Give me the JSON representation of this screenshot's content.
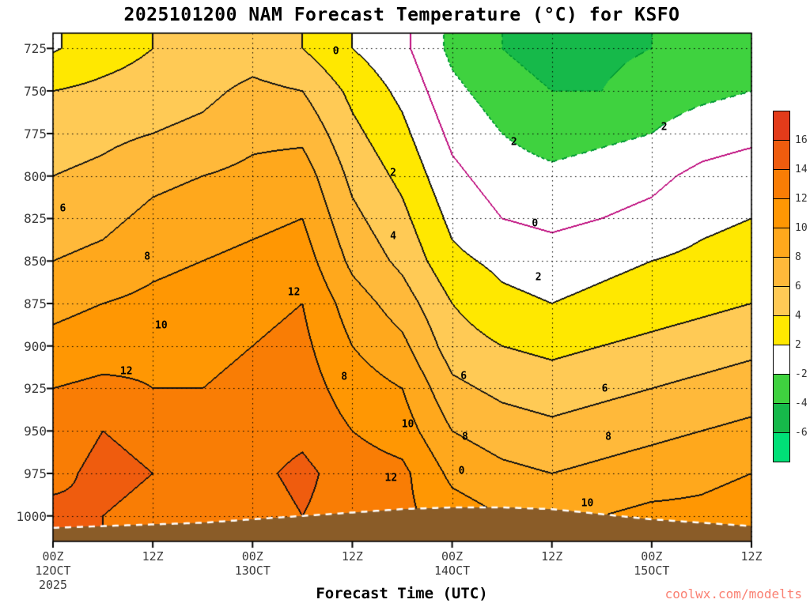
{
  "title": "2025101200 NAM Forecast Temperature (°C) for KSFO",
  "x_axis_title": "Forecast Time (UTC)",
  "watermark": "coolwx.com/modelts",
  "chart_data": {
    "type": "heatmap",
    "subtype": "time-height contour cross-section",
    "title": "2025101200 NAM Forecast Temperature (°C) for KSFO",
    "unit": "°C",
    "contour_interval": 2,
    "x_hours": [
      0,
      6,
      12,
      18,
      24,
      30,
      36,
      42,
      48,
      54,
      60,
      66,
      72,
      78,
      84
    ],
    "x_tick_hours": [
      0,
      12,
      24,
      36,
      48,
      60,
      72,
      84
    ],
    "x_tick_labels": [
      "00Z",
      "12Z",
      "00Z",
      "12Z",
      "00Z",
      "12Z",
      "00Z",
      "12Z"
    ],
    "date_ticks": [
      {
        "hour": 0,
        "label": "12OCT",
        "sublabel": "2025"
      },
      {
        "hour": 24,
        "label": "13OCT",
        "sublabel": ""
      },
      {
        "hour": 48,
        "label": "14OCT",
        "sublabel": ""
      },
      {
        "hour": 72,
        "label": "15OCT",
        "sublabel": ""
      }
    ],
    "pressure_levels": [
      725,
      750,
      775,
      800,
      825,
      850,
      875,
      900,
      925,
      950,
      975,
      1000
    ],
    "y_tick_labels": [
      "725",
      "750",
      "775",
      "800",
      "825",
      "850",
      "875",
      "900",
      "925",
      "950",
      "975",
      "1000"
    ],
    "y_range_hpa": [
      716,
      1015
    ],
    "x_range_hours": [
      0,
      84
    ],
    "temps_by_level": [
      [
        1.8,
        3,
        4,
        4.5,
        5,
        4,
        2,
        0.5,
        -2.5,
        -4,
        -5,
        -4.5,
        -4,
        -3,
        -2.5
      ],
      [
        4,
        4.5,
        5,
        5.5,
        6.5,
        6,
        3.5,
        1.5,
        -1.5,
        -3,
        -4,
        -4,
        -3,
        -2.5,
        -2
      ],
      [
        5,
        5.5,
        6,
        6.5,
        7.5,
        7.5,
        4.5,
        2.5,
        -0.5,
        -2,
        -3,
        -2.5,
        -2,
        -1,
        -0.5
      ],
      [
        6,
        6.5,
        7.5,
        8,
        8.5,
        9,
        5.5,
        3.5,
        0.5,
        -1,
        -1.5,
        -1,
        -0.5,
        0.5,
        1
      ],
      [
        7,
        7.5,
        8.5,
        9,
        9.5,
        10,
        6.5,
        4.5,
        1.5,
        0,
        -0.5,
        0,
        0.5,
        1.5,
        2
      ],
      [
        8,
        8.5,
        9.5,
        10,
        10.5,
        11,
        7.5,
        5.5,
        2.5,
        1.5,
        1,
        1.5,
        2,
        2.5,
        3
      ],
      [
        9.5,
        10,
        10.5,
        11,
        11.5,
        12,
        9,
        7,
        4,
        2.5,
        2,
        2.5,
        3,
        3.5,
        4
      ],
      [
        10.5,
        11,
        11.5,
        11.5,
        12,
        12.5,
        10,
        8.5,
        5,
        4,
        3.5,
        4,
        4.5,
        5,
        5.5
      ],
      [
        12,
        12.5,
        12,
        12,
        12.5,
        13,
        11,
        10,
        6.5,
        5.5,
        5,
        5.5,
        6,
        6.5,
        7
      ],
      [
        13,
        14,
        13.5,
        12.5,
        13,
        13.5,
        12,
        11,
        8,
        7,
        6.5,
        7,
        7.5,
        8,
        8.5
      ],
      [
        13.5,
        14.5,
        14,
        13.5,
        13.5,
        14.5,
        13,
        12.5,
        9.5,
        8.5,
        8,
        8.5,
        9,
        9.5,
        10
      ],
      [
        14.5,
        14,
        13.5,
        13.5,
        13,
        14,
        13,
        12.5,
        11,
        10,
        9.5,
        10,
        10.5,
        10.5,
        11
      ]
    ],
    "surface_pressure": [
      1007,
      1006,
      1005,
      1004,
      1002,
      1000,
      998,
      996,
      995,
      995,
      996,
      999,
      1002,
      1004,
      1006
    ],
    "colorbar": {
      "ticks": [
        16,
        14,
        12,
        10,
        8,
        6,
        4,
        2,
        -2,
        -4,
        -6
      ],
      "band_colors_top_to_bottom": [
        "#e33b1a",
        "#ef5c0e",
        "#f97d05",
        "#ff9703",
        "#ffa81c",
        "#ffb93a",
        "#ffca55",
        "#ffe800",
        "#ffffff",
        "#3fd23f",
        "#16b94a",
        "#00e077"
      ]
    },
    "contour_labels": [
      {
        "text": "0",
        "x": 0.405,
        "y": 0.035
      },
      {
        "text": "2",
        "x": 0.487,
        "y": 0.275
      },
      {
        "text": "4",
        "x": 0.487,
        "y": 0.4
      },
      {
        "text": "2",
        "x": 0.66,
        "y": 0.215
      },
      {
        "text": "2",
        "x": 0.875,
        "y": 0.185
      },
      {
        "text": "0",
        "x": 0.69,
        "y": 0.375
      },
      {
        "text": "2",
        "x": 0.695,
        "y": 0.48
      },
      {
        "text": "6",
        "x": 0.014,
        "y": 0.345
      },
      {
        "text": "8",
        "x": 0.135,
        "y": 0.44
      },
      {
        "text": "10",
        "x": 0.155,
        "y": 0.575
      },
      {
        "text": "12",
        "x": 0.105,
        "y": 0.665
      },
      {
        "text": "12",
        "x": 0.345,
        "y": 0.51
      },
      {
        "text": "8",
        "x": 0.417,
        "y": 0.677
      },
      {
        "text": "6",
        "x": 0.588,
        "y": 0.675
      },
      {
        "text": "10",
        "x": 0.508,
        "y": 0.77
      },
      {
        "text": "8",
        "x": 0.59,
        "y": 0.795
      },
      {
        "text": "12",
        "x": 0.484,
        "y": 0.875
      },
      {
        "text": "0",
        "x": 0.585,
        "y": 0.862
      },
      {
        "text": "6",
        "x": 0.79,
        "y": 0.7
      },
      {
        "text": "8",
        "x": 0.795,
        "y": 0.795
      },
      {
        "text": "10",
        "x": 0.765,
        "y": 0.925
      }
    ]
  },
  "style": {
    "background": "#ffffff",
    "terrain": "#8a5c28",
    "contour_positive": "#111111",
    "contour_zero": "#c01080",
    "contour_negative": "#009933",
    "grid": "#000000",
    "axis_text": "#3c3c3c",
    "watermark": "#fa8072",
    "surface_line": "#ffffff"
  }
}
